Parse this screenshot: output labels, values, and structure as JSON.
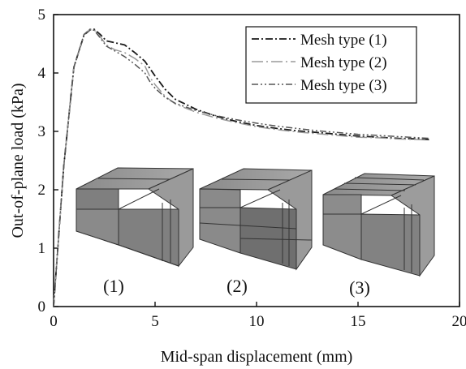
{
  "chart_data": {
    "type": "line",
    "xlabel": "Mid-span displacement (mm)",
    "ylabel": "Out-of-plane load (kPa)",
    "xlim": [
      0,
      20
    ],
    "ylim": [
      0,
      5
    ],
    "xticks": [
      "0",
      "5",
      "10",
      "15",
      "20"
    ],
    "yticks": [
      "0",
      "1",
      "2",
      "3",
      "4",
      "5"
    ],
    "grid": false,
    "legend_position": "top-right",
    "series": [
      {
        "name": "Mesh type (1)",
        "color": "#1a1a1a",
        "dash": "dash-dot",
        "x": [
          0,
          0.5,
          1.0,
          1.5,
          1.8,
          2.0,
          2.3,
          2.6,
          3.0,
          3.5,
          4.0,
          4.5,
          4.8,
          5.0,
          5.5,
          6.0,
          7.0,
          8.0,
          9.0,
          10.0,
          11.0,
          12.0,
          13.0,
          14.0,
          15.0,
          16.0,
          17.0,
          18.0,
          18.5
        ],
        "y": [
          0,
          2.4,
          4.1,
          4.65,
          4.74,
          4.75,
          4.66,
          4.55,
          4.52,
          4.48,
          4.35,
          4.2,
          4.05,
          3.95,
          3.72,
          3.55,
          3.38,
          3.26,
          3.17,
          3.1,
          3.05,
          3.01,
          2.98,
          2.95,
          2.92,
          2.9,
          2.88,
          2.87,
          2.86
        ]
      },
      {
        "name": "Mesh type (2)",
        "color": "#9a9a9a",
        "dash": "long-dash-dot",
        "x": [
          0,
          0.5,
          1.0,
          1.5,
          1.8,
          2.0,
          2.3,
          2.6,
          3.0,
          3.5,
          4.0,
          4.5,
          4.8,
          5.0,
          5.5,
          6.0,
          7.0,
          8.0,
          9.0,
          10.0,
          11.0,
          12.0,
          13.0,
          14.0,
          15.0,
          16.0,
          17.0,
          18.0,
          18.5
        ],
        "y": [
          0,
          2.4,
          4.1,
          4.66,
          4.75,
          4.74,
          4.62,
          4.48,
          4.4,
          4.35,
          4.25,
          4.12,
          3.9,
          3.8,
          3.6,
          3.47,
          3.33,
          3.23,
          3.15,
          3.08,
          3.03,
          2.99,
          2.96,
          2.93,
          2.9,
          2.89,
          2.87,
          2.86,
          2.85
        ]
      },
      {
        "name": "Mesh type (3)",
        "color": "#555555",
        "dash": "dash-dot-dot",
        "x": [
          0,
          0.5,
          1.0,
          1.5,
          1.8,
          2.0,
          2.3,
          2.6,
          3.0,
          3.5,
          4.0,
          4.5,
          4.8,
          5.0,
          5.5,
          6.0,
          7.0,
          8.0,
          9.0,
          10.0,
          11.0,
          12.0,
          13.0,
          14.0,
          15.0,
          16.0,
          17.0,
          18.0,
          18.5
        ],
        "y": [
          0,
          2.4,
          4.1,
          4.66,
          4.75,
          4.73,
          4.6,
          4.46,
          4.38,
          4.28,
          4.15,
          4.0,
          3.82,
          3.74,
          3.58,
          3.48,
          3.36,
          3.27,
          3.2,
          3.14,
          3.09,
          3.05,
          3.01,
          2.98,
          2.95,
          2.93,
          2.91,
          2.89,
          2.88
        ]
      }
    ],
    "annotations": [
      "(1)",
      "(2)",
      "(3)"
    ]
  }
}
